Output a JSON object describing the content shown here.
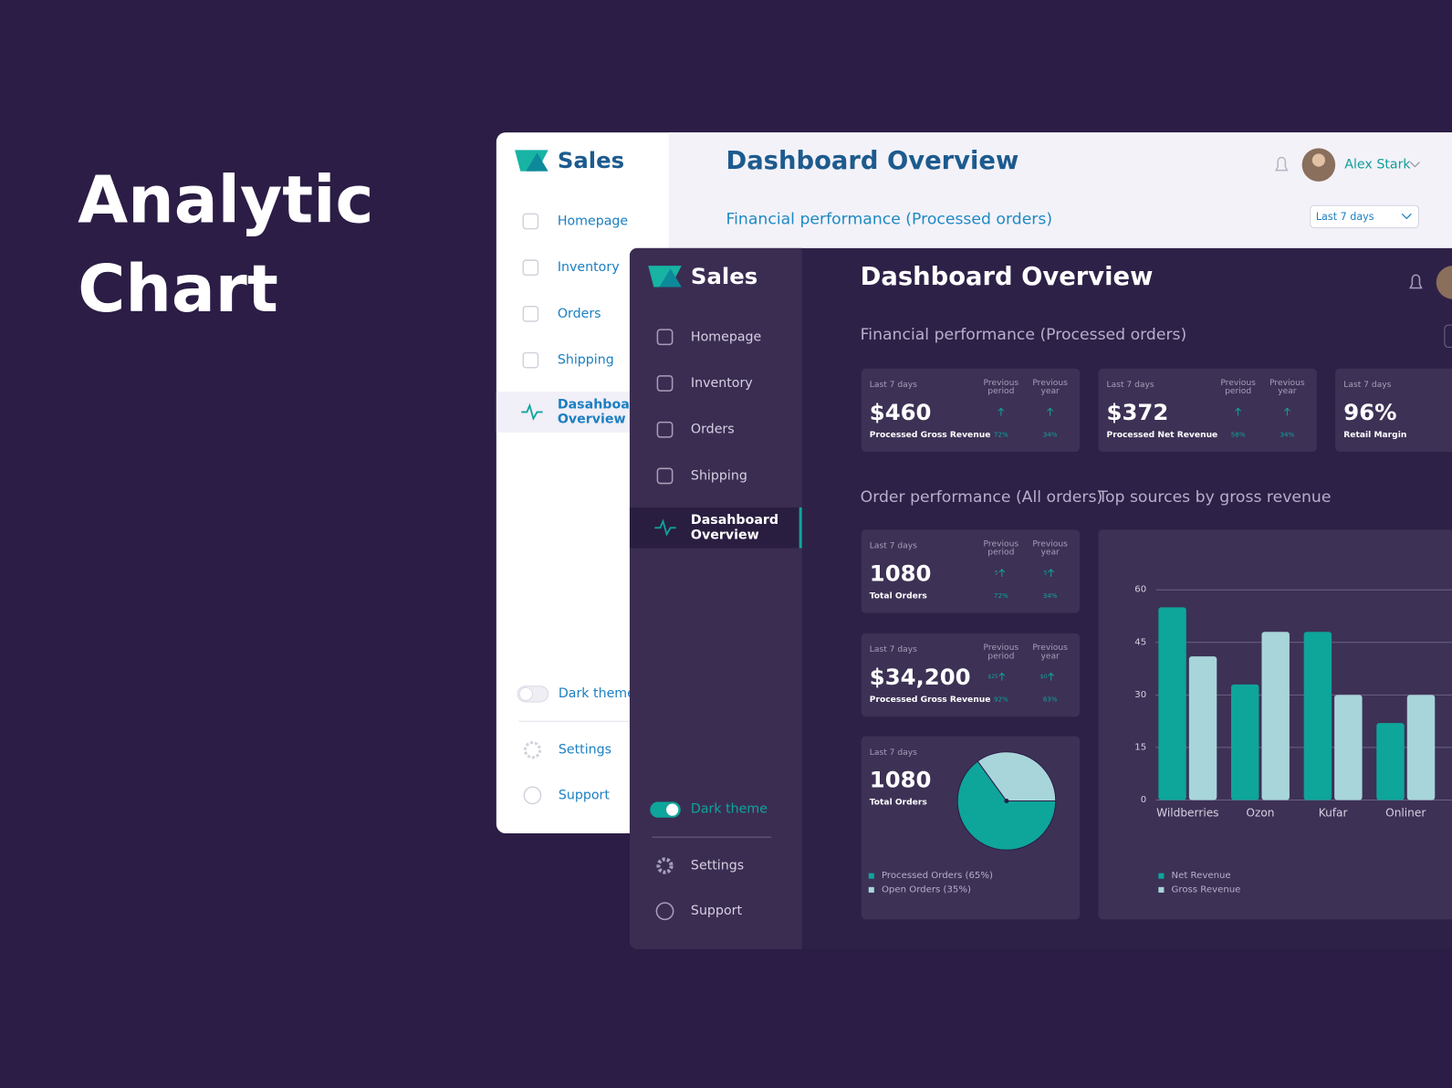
{
  "headline": [
    "Analytic",
    "Chart"
  ],
  "light": {
    "brand": "Sales",
    "title": "Dashboard Overview",
    "subtitle": "Financial performance (Processed orders)",
    "user": "Alex Stark",
    "range": "Last 7 days",
    "nav": [
      "Homepage",
      "Inventory",
      "Orders",
      "Shipping"
    ],
    "active": [
      "Dasahboard",
      "Overview"
    ],
    "theme_toggle": "Dark theme",
    "settings": "Settings",
    "support": "Support"
  },
  "dark": {
    "brand": "Sales",
    "title": "Dashboard Overview",
    "subtitle": "Financial performance (Processed orders)",
    "nav": [
      "Homepage",
      "Inventory",
      "Orders",
      "Shipping"
    ],
    "active": [
      "Dasahboard",
      "Overview"
    ],
    "theme_toggle": "Dark theme",
    "settings": "Settings",
    "support": "Support",
    "order_title": "Order performance (All orders)",
    "sources_title": "Top sources by gross revenue",
    "period": "Last 7 days",
    "col_headers": [
      [
        "Previous",
        "period"
      ],
      [
        "Previous",
        "year"
      ]
    ],
    "cards": [
      {
        "value": "$460",
        "label": "Processed Gross Revenue",
        "changes": [
          "72%",
          "34%"
        ]
      },
      {
        "value": "$372",
        "label": "Processed Net Revenue",
        "changes": [
          "58%",
          "34%"
        ]
      },
      {
        "value": "96%",
        "label": "Retail Margin"
      },
      {
        "value": "1080",
        "label": "Total Orders",
        "deltas": [
          "5",
          "5"
        ],
        "changes": [
          "72%",
          "34%"
        ]
      },
      {
        "value": "$34,200",
        "label": "Processed Gross Revenue",
        "deltas": [
          "$25",
          "$0"
        ],
        "changes": [
          "92%",
          "83%"
        ]
      },
      {
        "value": "1080",
        "label": "Total Orders"
      }
    ]
  },
  "chart_data": [
    {
      "type": "bar",
      "categories": [
        "Wildberries",
        "Ozon",
        "Kufar",
        "Onliner"
      ],
      "series": [
        {
          "name": "Net Revenue",
          "color": "#0ea59b",
          "values": [
            55,
            33,
            48,
            22
          ]
        },
        {
          "name": "Gross Revenue",
          "color": "#a8d5da",
          "values": [
            41,
            48,
            30,
            30
          ]
        }
      ],
      "ylim": [
        0,
        60
      ],
      "yticks": [
        0,
        15,
        30,
        45,
        60
      ],
      "grid": true
    },
    {
      "type": "pie",
      "labels": [
        "Processed Orders (65%)",
        "Open Orders (35%)"
      ],
      "values": [
        65,
        35
      ],
      "colors": [
        "#0ea59b",
        "#a8d5da"
      ]
    }
  ]
}
